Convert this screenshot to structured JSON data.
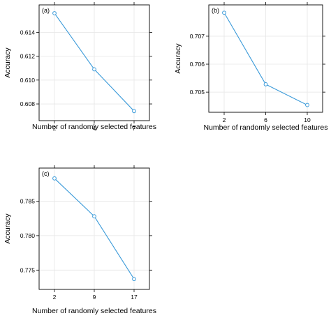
{
  "chart_data": [
    {
      "type": "line",
      "panel_label": "(a)",
      "xlabel": "Number of randomly selected features",
      "ylabel": "Accuracy",
      "categories": [
        "2",
        "4",
        "7"
      ],
      "x": [
        2,
        4,
        7
      ],
      "values": [
        0.6156,
        0.6109,
        0.6074
      ],
      "ylim": [
        0.6066,
        0.6163
      ],
      "yticks": [
        0.608,
        0.61,
        0.612,
        0.614
      ],
      "ytick_labels": [
        "0.608",
        "0.610",
        "0.612",
        "0.614"
      ],
      "grid": true,
      "color": "#3a9ad9"
    },
    {
      "type": "line",
      "panel_label": "(b)",
      "xlabel": "Number of randomly selected features",
      "ylabel": "Accuracy",
      "categories": [
        "2",
        "6",
        "10"
      ],
      "x": [
        2,
        6,
        10
      ],
      "values": [
        0.70784,
        0.70528,
        0.70454
      ],
      "ylim": [
        0.70428,
        0.70812
      ],
      "yticks": [
        0.705,
        0.706,
        0.707
      ],
      "ytick_labels": [
        "0.705",
        "0.706",
        "0.707"
      ],
      "grid": true,
      "color": "#3a9ad9"
    },
    {
      "type": "line",
      "panel_label": "(c)",
      "xlabel": "Number of randomly selected features",
      "ylabel": "Accuracy",
      "categories": [
        "2",
        "9",
        "17"
      ],
      "x": [
        2,
        9,
        17
      ],
      "values": [
        0.7883,
        0.7828,
        0.7737
      ],
      "ylim": [
        0.7722,
        0.7898
      ],
      "yticks": [
        0.775,
        0.78,
        0.785
      ],
      "ytick_labels": [
        "0.775",
        "0.780",
        "0.785"
      ],
      "grid": true,
      "color": "#3a9ad9"
    }
  ]
}
